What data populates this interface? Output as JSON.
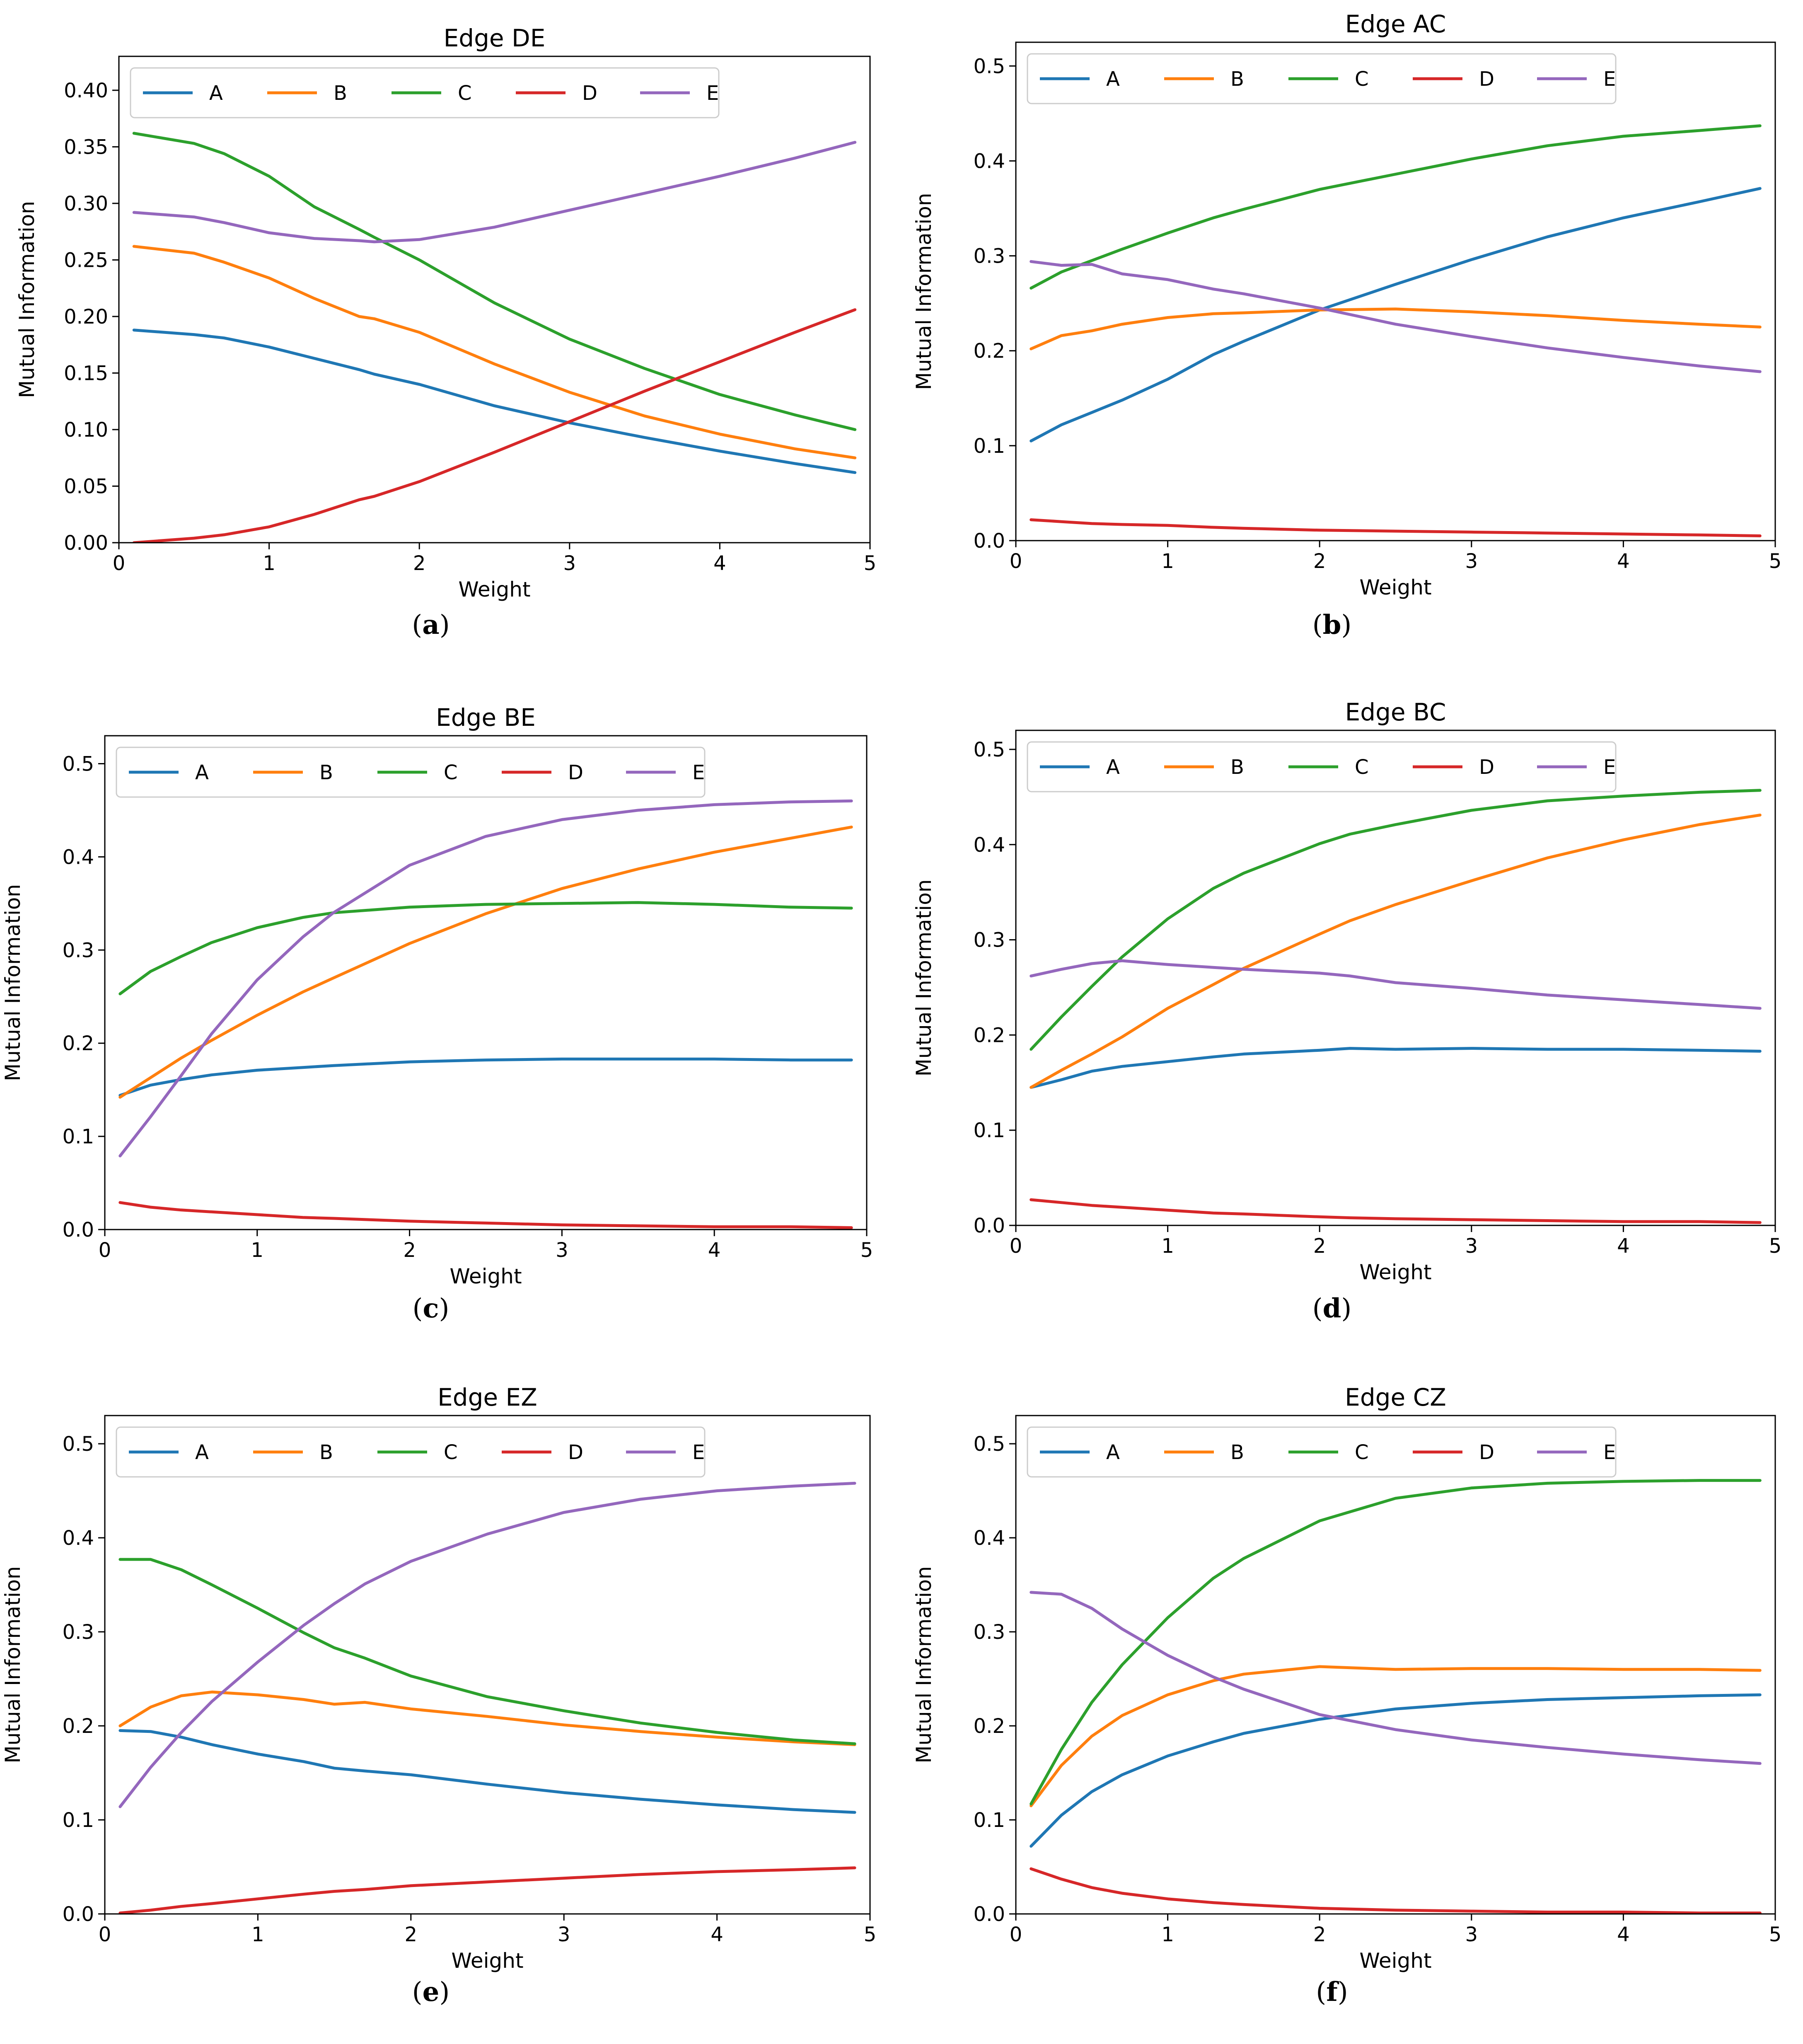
{
  "figure": {
    "series_colors": {
      "A": "#1f77b4",
      "B": "#ff7f0e",
      "C": "#2ca02c",
      "D": "#d62728",
      "E": "#9467bd"
    },
    "panel_labels": [
      "(a)",
      "(b)",
      "(c)",
      "(d)",
      "(e)",
      "(f)"
    ]
  },
  "chart_data": [
    {
      "type": "line",
      "title": "Edge DE",
      "xlabel": "Weight",
      "ylabel": "Mutual Information",
      "xlim": [
        0,
        5
      ],
      "ylim": [
        0,
        0.43
      ],
      "xticks": [
        "0",
        "1",
        "2",
        "3",
        "4",
        "5"
      ],
      "yticks": [
        "0.00",
        "0.05",
        "0.10",
        "0.15",
        "0.20",
        "0.25",
        "0.30",
        "0.35",
        "0.40"
      ],
      "x": [
        0.1,
        0.5,
        0.7,
        1.0,
        1.3,
        1.6,
        1.7,
        2.0,
        2.5,
        3.0,
        3.5,
        4.0,
        4.5,
        4.9
      ],
      "series": [
        {
          "name": "A",
          "values": [
            0.188,
            0.184,
            0.181,
            0.173,
            0.163,
            0.153,
            0.149,
            0.14,
            0.121,
            0.106,
            0.093,
            0.081,
            0.07,
            0.062
          ]
        },
        {
          "name": "B",
          "values": [
            0.262,
            0.256,
            0.248,
            0.234,
            0.216,
            0.2,
            0.198,
            0.186,
            0.158,
            0.133,
            0.112,
            0.096,
            0.083,
            0.075
          ]
        },
        {
          "name": "C",
          "values": [
            0.362,
            0.353,
            0.344,
            0.324,
            0.297,
            0.277,
            0.27,
            0.25,
            0.212,
            0.18,
            0.154,
            0.131,
            0.113,
            0.1
          ]
        },
        {
          "name": "D",
          "values": [
            0.0,
            0.004,
            0.007,
            0.014,
            0.025,
            0.038,
            0.041,
            0.054,
            0.08,
            0.107,
            0.134,
            0.16,
            0.186,
            0.206
          ]
        },
        {
          "name": "E",
          "values": [
            0.292,
            0.288,
            0.283,
            0.274,
            0.269,
            0.267,
            0.266,
            0.268,
            0.279,
            0.294,
            0.309,
            0.324,
            0.34,
            0.354
          ]
        }
      ]
    },
    {
      "type": "line",
      "title": "Edge AC",
      "xlabel": "Weight",
      "ylabel": "Mutual Information",
      "xlim": [
        0,
        5
      ],
      "ylim": [
        0,
        0.525
      ],
      "xticks": [
        "0",
        "1",
        "2",
        "3",
        "4",
        "5"
      ],
      "yticks": [
        "0.0",
        "0.1",
        "0.2",
        "0.3",
        "0.4",
        "0.5"
      ],
      "x": [
        0.1,
        0.3,
        0.5,
        0.7,
        1.0,
        1.3,
        1.5,
        2.0,
        2.5,
        3.0,
        3.5,
        4.0,
        4.5,
        4.9
      ],
      "series": [
        {
          "name": "A",
          "values": [
            0.105,
            0.122,
            0.135,
            0.148,
            0.17,
            0.196,
            0.21,
            0.243,
            0.27,
            0.296,
            0.32,
            0.34,
            0.357,
            0.371
          ]
        },
        {
          "name": "B",
          "values": [
            0.202,
            0.216,
            0.221,
            0.228,
            0.235,
            0.239,
            0.24,
            0.243,
            0.244,
            0.241,
            0.237,
            0.232,
            0.228,
            0.225
          ]
        },
        {
          "name": "C",
          "values": [
            0.266,
            0.283,
            0.295,
            0.307,
            0.324,
            0.34,
            0.349,
            0.37,
            0.386,
            0.402,
            0.416,
            0.426,
            0.432,
            0.437
          ]
        },
        {
          "name": "D",
          "values": [
            0.022,
            0.02,
            0.018,
            0.017,
            0.016,
            0.014,
            0.013,
            0.011,
            0.01,
            0.009,
            0.008,
            0.007,
            0.006,
            0.005
          ]
        },
        {
          "name": "E",
          "values": [
            0.294,
            0.29,
            0.291,
            0.281,
            0.275,
            0.265,
            0.26,
            0.245,
            0.228,
            0.215,
            0.203,
            0.193,
            0.184,
            0.178
          ]
        }
      ]
    },
    {
      "type": "line",
      "title": "Edge BE",
      "xlabel": "Weight",
      "ylabel": "Mutual Information",
      "xlim": [
        0,
        5
      ],
      "ylim": [
        0,
        0.53
      ],
      "xticks": [
        "0",
        "1",
        "2",
        "3",
        "4",
        "5"
      ],
      "yticks": [
        "0.0",
        "0.1",
        "0.2",
        "0.3",
        "0.4",
        "0.5"
      ],
      "x": [
        0.1,
        0.3,
        0.5,
        0.7,
        1.0,
        1.3,
        1.5,
        2.0,
        2.5,
        3.0,
        3.5,
        4.0,
        4.5,
        4.9
      ],
      "series": [
        {
          "name": "A",
          "values": [
            0.144,
            0.155,
            0.161,
            0.166,
            0.171,
            0.174,
            0.176,
            0.18,
            0.182,
            0.183,
            0.183,
            0.183,
            0.182,
            0.182
          ]
        },
        {
          "name": "B",
          "values": [
            0.142,
            0.163,
            0.184,
            0.203,
            0.23,
            0.255,
            0.27,
            0.307,
            0.339,
            0.366,
            0.387,
            0.405,
            0.42,
            0.432
          ]
        },
        {
          "name": "C",
          "values": [
            0.253,
            0.277,
            0.293,
            0.308,
            0.324,
            0.335,
            0.34,
            0.346,
            0.349,
            0.35,
            0.351,
            0.349,
            0.346,
            0.345
          ]
        },
        {
          "name": "D",
          "values": [
            0.029,
            0.024,
            0.021,
            0.019,
            0.016,
            0.013,
            0.012,
            0.009,
            0.007,
            0.005,
            0.004,
            0.003,
            0.003,
            0.002
          ]
        },
        {
          "name": "E",
          "values": [
            0.079,
            0.121,
            0.165,
            0.21,
            0.268,
            0.314,
            0.34,
            0.391,
            0.422,
            0.44,
            0.45,
            0.456,
            0.459,
            0.46
          ]
        }
      ]
    },
    {
      "type": "line",
      "title": "Edge BC",
      "xlabel": "Weight",
      "ylabel": "Mutual Information",
      "xlim": [
        0,
        5
      ],
      "ylim": [
        0,
        0.52
      ],
      "xticks": [
        "0",
        "1",
        "2",
        "3",
        "4",
        "5"
      ],
      "yticks": [
        "0.0",
        "0.1",
        "0.2",
        "0.3",
        "0.4",
        "0.5"
      ],
      "x": [
        0.1,
        0.3,
        0.5,
        0.7,
        1.0,
        1.3,
        1.5,
        2.0,
        2.2,
        2.5,
        3.0,
        3.5,
        4.0,
        4.5,
        4.9
      ],
      "series": [
        {
          "name": "A",
          "values": [
            0.145,
            0.153,
            0.162,
            0.167,
            0.172,
            0.177,
            0.18,
            0.184,
            0.186,
            0.185,
            0.186,
            0.185,
            0.185,
            0.184,
            0.183
          ]
        },
        {
          "name": "B",
          "values": [
            0.145,
            0.163,
            0.18,
            0.198,
            0.228,
            0.253,
            0.27,
            0.306,
            0.32,
            0.337,
            0.362,
            0.386,
            0.405,
            0.421,
            0.431
          ]
        },
        {
          "name": "C",
          "values": [
            0.185,
            0.219,
            0.251,
            0.282,
            0.322,
            0.354,
            0.37,
            0.401,
            0.411,
            0.421,
            0.436,
            0.446,
            0.451,
            0.455,
            0.457
          ]
        },
        {
          "name": "D",
          "values": [
            0.027,
            0.024,
            0.021,
            0.019,
            0.016,
            0.013,
            0.012,
            0.009,
            0.008,
            0.007,
            0.006,
            0.005,
            0.004,
            0.004,
            0.003
          ]
        },
        {
          "name": "E",
          "values": [
            0.262,
            0.269,
            0.275,
            0.278,
            0.274,
            0.271,
            0.269,
            0.265,
            0.262,
            0.255,
            0.249,
            0.242,
            0.237,
            0.232,
            0.228
          ]
        }
      ]
    },
    {
      "type": "line",
      "title": "Edge EZ",
      "xlabel": "Weight",
      "ylabel": "Mutual Information",
      "xlim": [
        0,
        5
      ],
      "ylim": [
        0,
        0.53
      ],
      "xticks": [
        "0",
        "1",
        "2",
        "3",
        "4",
        "5"
      ],
      "yticks": [
        "0.0",
        "0.1",
        "0.2",
        "0.3",
        "0.4",
        "0.5"
      ],
      "x": [
        0.1,
        0.3,
        0.5,
        0.7,
        1.0,
        1.3,
        1.5,
        1.7,
        2.0,
        2.5,
        3.0,
        3.5,
        4.0,
        4.5,
        4.9
      ],
      "series": [
        {
          "name": "A",
          "values": [
            0.195,
            0.194,
            0.188,
            0.18,
            0.17,
            0.162,
            0.155,
            0.152,
            0.148,
            0.138,
            0.129,
            0.122,
            0.116,
            0.111,
            0.108
          ]
        },
        {
          "name": "B",
          "values": [
            0.2,
            0.22,
            0.232,
            0.236,
            0.233,
            0.228,
            0.223,
            0.225,
            0.218,
            0.21,
            0.201,
            0.194,
            0.188,
            0.183,
            0.18
          ]
        },
        {
          "name": "C",
          "values": [
            0.377,
            0.377,
            0.366,
            0.35,
            0.325,
            0.299,
            0.283,
            0.272,
            0.253,
            0.231,
            0.216,
            0.203,
            0.193,
            0.185,
            0.181
          ]
        },
        {
          "name": "D",
          "values": [
            0.001,
            0.004,
            0.008,
            0.011,
            0.016,
            0.021,
            0.024,
            0.026,
            0.03,
            0.034,
            0.038,
            0.042,
            0.045,
            0.047,
            0.049
          ]
        },
        {
          "name": "E",
          "values": [
            0.114,
            0.156,
            0.193,
            0.226,
            0.268,
            0.307,
            0.33,
            0.351,
            0.375,
            0.404,
            0.427,
            0.441,
            0.45,
            0.455,
            0.458
          ]
        }
      ]
    },
    {
      "type": "line",
      "title": "Edge CZ",
      "xlabel": "Weight",
      "ylabel": "Mutual Information",
      "xlim": [
        0,
        5
      ],
      "ylim": [
        0,
        0.53
      ],
      "xticks": [
        "0",
        "1",
        "2",
        "3",
        "4",
        "5"
      ],
      "yticks": [
        "0.0",
        "0.1",
        "0.2",
        "0.3",
        "0.4",
        "0.5"
      ],
      "x": [
        0.1,
        0.3,
        0.5,
        0.7,
        1.0,
        1.3,
        1.5,
        2.0,
        2.5,
        3.0,
        3.5,
        4.0,
        4.5,
        4.9
      ],
      "series": [
        {
          "name": "A",
          "values": [
            0.072,
            0.105,
            0.13,
            0.148,
            0.168,
            0.183,
            0.192,
            0.207,
            0.218,
            0.224,
            0.228,
            0.23,
            0.232,
            0.233
          ]
        },
        {
          "name": "B",
          "values": [
            0.115,
            0.158,
            0.189,
            0.211,
            0.233,
            0.248,
            0.255,
            0.263,
            0.26,
            0.261,
            0.261,
            0.26,
            0.26,
            0.259
          ]
        },
        {
          "name": "C",
          "values": [
            0.117,
            0.175,
            0.225,
            0.265,
            0.315,
            0.357,
            0.378,
            0.418,
            0.442,
            0.453,
            0.458,
            0.46,
            0.461,
            0.461
          ]
        },
        {
          "name": "D",
          "values": [
            0.048,
            0.037,
            0.028,
            0.022,
            0.016,
            0.012,
            0.01,
            0.006,
            0.004,
            0.003,
            0.002,
            0.002,
            0.001,
            0.001
          ]
        },
        {
          "name": "E",
          "values": [
            0.342,
            0.34,
            0.325,
            0.303,
            0.275,
            0.252,
            0.239,
            0.212,
            0.196,
            0.185,
            0.177,
            0.17,
            0.164,
            0.16
          ]
        }
      ]
    }
  ]
}
